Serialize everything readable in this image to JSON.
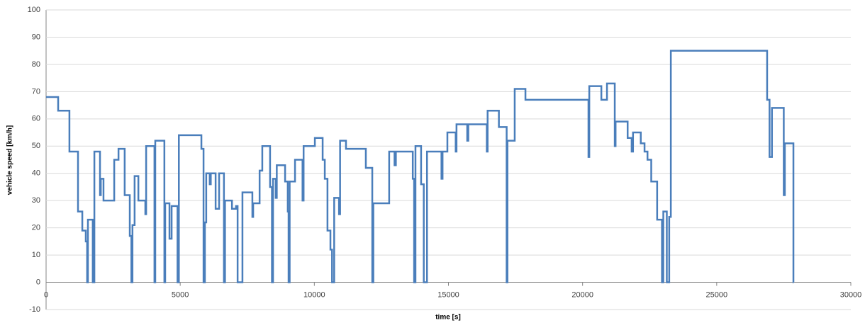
{
  "chart_data": {
    "type": "line",
    "y_label": "vehicle speed [km/h]",
    "x_label": "time [s]",
    "xlim": [
      0,
      30000
    ],
    "xticks": [
      0,
      5000,
      10000,
      15000,
      20000,
      25000,
      30000
    ],
    "ylim": [
      -10,
      100
    ],
    "yticks": [
      -10,
      0,
      10,
      20,
      30,
      40,
      50,
      60,
      70,
      80,
      90,
      100
    ],
    "grid": true,
    "series": [
      {
        "color": "#4a7ebb",
        "x": [
          0,
          450,
          450,
          870,
          870,
          1190,
          1190,
          1350,
          1350,
          1480,
          1480,
          1530,
          1530,
          1560,
          1560,
          1740,
          1740,
          1800,
          1800,
          2010,
          2010,
          2040,
          2040,
          2140,
          2140,
          2540,
          2540,
          2700,
          2700,
          2930,
          2930,
          3120,
          3120,
          3180,
          3180,
          3220,
          3220,
          3300,
          3300,
          3440,
          3440,
          3700,
          3700,
          3730,
          3730,
          4040,
          4040,
          4070,
          4070,
          4410,
          4410,
          4440,
          4440,
          4600,
          4600,
          4680,
          4680,
          4900,
          4900,
          4950,
          4950,
          5790,
          5790,
          5870,
          5870,
          5920,
          5920,
          5970,
          5970,
          6100,
          6100,
          6140,
          6140,
          6320,
          6320,
          6450,
          6450,
          6630,
          6630,
          6670,
          6670,
          6930,
          6930,
          7080,
          7080,
          7140,
          7140,
          7320,
          7320,
          7690,
          7690,
          7720,
          7720,
          7960,
          7960,
          8060,
          8060,
          8350,
          8350,
          8420,
          8420,
          8460,
          8460,
          8560,
          8560,
          8600,
          8600,
          8910,
          8910,
          9010,
          9010,
          9040,
          9040,
          9080,
          9080,
          9280,
          9280,
          9560,
          9560,
          9600,
          9600,
          10020,
          10020,
          10310,
          10310,
          10390,
          10390,
          10490,
          10490,
          10600,
          10600,
          10660,
          10660,
          10740,
          10740,
          10920,
          10920,
          10960,
          10960,
          11180,
          11180,
          11920,
          11920,
          12160,
          12160,
          12200,
          12200,
          12790,
          12790,
          12990,
          12990,
          13040,
          13040,
          13670,
          13670,
          13720,
          13720,
          13770,
          13770,
          13980,
          13980,
          14080,
          14080,
          14200,
          14200,
          14740,
          14740,
          14780,
          14780,
          14960,
          14960,
          15270,
          15270,
          15300,
          15300,
          15700,
          15700,
          15740,
          15740,
          16430,
          16430,
          16460,
          16460,
          16880,
          16880,
          17170,
          17170,
          17200,
          17200,
          17470,
          17470,
          17870,
          17870,
          20220,
          20220,
          20250,
          20250,
          20700,
          20700,
          20910,
          20910,
          21200,
          21200,
          21230,
          21230,
          21680,
          21680,
          21830,
          21830,
          21880,
          21880,
          22170,
          22170,
          22310,
          22310,
          22420,
          22420,
          22560,
          22560,
          22780,
          22780,
          22960,
          22960,
          23010,
          23010,
          23140,
          23140,
          23230,
          23230,
          23290,
          23290,
          26880,
          26880,
          26970,
          26970,
          27060,
          27060,
          27500,
          27500,
          27540,
          27540,
          27860,
          27860,
          27870
        ],
        "values": [
          68,
          68,
          63,
          63,
          48,
          48,
          26,
          26,
          19,
          19,
          15,
          15,
          0,
          0,
          23,
          23,
          0,
          0,
          48,
          48,
          32,
          32,
          38,
          38,
          30,
          30,
          45,
          45,
          49,
          49,
          32,
          32,
          17,
          17,
          0,
          0,
          21,
          21,
          39,
          39,
          30,
          30,
          25,
          25,
          50,
          50,
          0,
          0,
          52,
          52,
          0,
          0,
          29,
          29,
          16,
          16,
          28,
          28,
          0,
          0,
          54,
          54,
          49,
          49,
          0,
          0,
          22,
          22,
          40,
          40,
          36,
          36,
          40,
          40,
          27,
          27,
          40,
          40,
          0,
          0,
          30,
          30,
          27,
          27,
          28,
          28,
          0,
          0,
          33,
          33,
          24,
          24,
          29,
          29,
          41,
          41,
          50,
          50,
          35,
          35,
          0,
          0,
          38,
          38,
          31,
          31,
          43,
          43,
          37,
          37,
          26,
          26,
          0,
          0,
          37,
          37,
          45,
          45,
          30,
          30,
          50,
          50,
          53,
          53,
          45,
          45,
          38,
          38,
          19,
          19,
          12,
          12,
          0,
          0,
          31,
          31,
          25,
          25,
          52,
          52,
          49,
          49,
          42,
          42,
          0,
          0,
          29,
          29,
          48,
          48,
          43,
          43,
          48,
          48,
          38,
          38,
          0,
          0,
          50,
          50,
          36,
          36,
          0,
          0,
          48,
          48,
          38,
          38,
          48,
          48,
          55,
          55,
          48,
          48,
          58,
          58,
          52,
          52,
          58,
          58,
          48,
          48,
          63,
          63,
          57,
          57,
          0,
          0,
          52,
          52,
          71,
          71,
          67,
          67,
          46,
          46,
          72,
          72,
          67,
          67,
          73,
          73,
          50,
          50,
          59,
          59,
          53,
          53,
          48,
          48,
          55,
          55,
          51,
          51,
          48,
          48,
          45,
          45,
          37,
          37,
          23,
          23,
          0,
          0,
          26,
          26,
          0,
          0,
          24,
          24,
          85,
          85,
          67,
          67,
          46,
          46,
          64,
          64,
          32,
          32,
          51,
          51,
          0,
          0
        ]
      }
    ]
  }
}
